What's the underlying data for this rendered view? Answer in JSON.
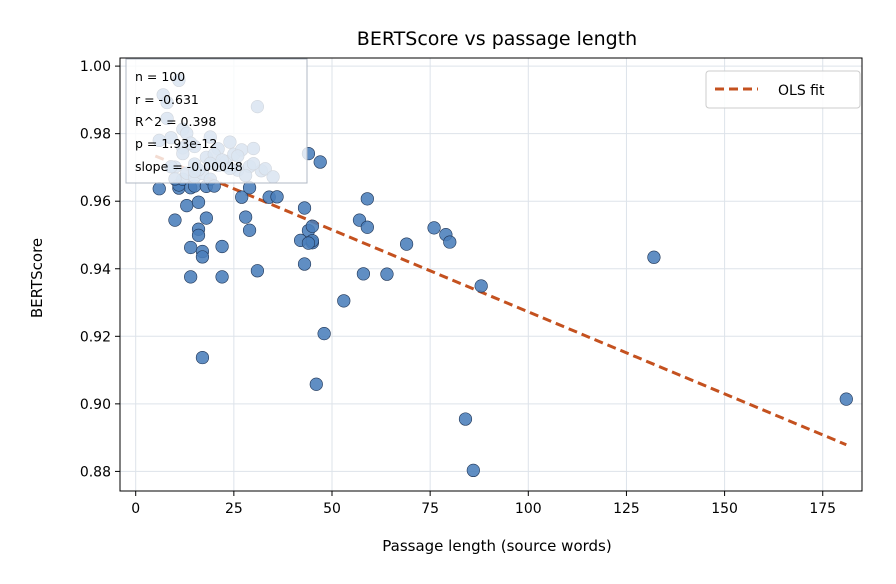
{
  "chart_data": {
    "type": "scatter",
    "title": "BERTScore vs passage length",
    "xlabel": "Passage length (source words)",
    "ylabel": "BERTScore",
    "xlim": [
      -4,
      185
    ],
    "ylim": [
      0.8742,
      1.0024
    ],
    "xticks": [
      0,
      25,
      50,
      75,
      100,
      125,
      150,
      175
    ],
    "yticks": [
      0.88,
      0.9,
      0.92,
      0.94,
      0.96,
      0.98,
      1.0
    ],
    "xtick_labels": [
      "0",
      "25",
      "50",
      "75",
      "100",
      "125",
      "150",
      "175"
    ],
    "ytick_labels": [
      "0.88",
      "0.90",
      "0.92",
      "0.94",
      "0.96",
      "0.98",
      "1.00"
    ],
    "grid": true,
    "legend_position": "top-right",
    "stats_box": [
      "n = 100",
      "r = -0.631",
      "R^2 = 0.398",
      "p = 1.93e-12",
      "slope = -0.00048"
    ],
    "fit": {
      "label": "OLS fit",
      "x": [
        5,
        181
      ],
      "y": [
        0.9734,
        0.8879
      ],
      "color": "#c4511f",
      "style": "dashed"
    },
    "points": {
      "color": "#4a7ebb",
      "edge_color": "#1f3556",
      "x": [
        6,
        7,
        8,
        9,
        10,
        10,
        11,
        11,
        12,
        12,
        13,
        13,
        14,
        14,
        14,
        15,
        15,
        15,
        16,
        16,
        16,
        17,
        17,
        17,
        17,
        18,
        18,
        19,
        20,
        21,
        22,
        22,
        23,
        24,
        26,
        27,
        28,
        29,
        29,
        31,
        31,
        32,
        34,
        36,
        42,
        43,
        43,
        44,
        44,
        45,
        45,
        45,
        46,
        47,
        48,
        53,
        57,
        58,
        59,
        59,
        64,
        69,
        76,
        79,
        80,
        84,
        86,
        88,
        132,
        181,
        6,
        8,
        9,
        12,
        13,
        15,
        18,
        19,
        21,
        23,
        25,
        27,
        29,
        30,
        33,
        35,
        11,
        14,
        16,
        20,
        24,
        26,
        28,
        44,
        30,
        19,
        12,
        10,
        15,
        22
      ],
      "y": [
        0.9637,
        0.9915,
        0.9892,
        0.9788,
        0.9544,
        0.9701,
        0.9639,
        0.9648,
        0.9665,
        0.9813,
        0.9587,
        0.9683,
        0.964,
        0.9463,
        0.9376,
        0.9645,
        0.9672,
        0.971,
        0.9597,
        0.9517,
        0.9499,
        0.9451,
        0.9435,
        0.9137,
        0.9682,
        0.955,
        0.9644,
        0.9665,
        0.9645,
        0.9706,
        0.9466,
        0.9376,
        0.9705,
        0.9775,
        0.9692,
        0.9612,
        0.9553,
        0.9514,
        0.964,
        0.988,
        0.9394,
        0.969,
        0.9612,
        0.9613,
        0.9484,
        0.9414,
        0.958,
        0.9741,
        0.9513,
        0.9526,
        0.9477,
        0.9483,
        0.9058,
        0.9716,
        0.9208,
        0.9305,
        0.9544,
        0.9385,
        0.9607,
        0.9523,
        0.9384,
        0.9473,
        0.9521,
        0.9501,
        0.9479,
        0.8955,
        0.8803,
        0.9349,
        0.9434,
        0.9014,
        0.978,
        0.9845,
        0.9702,
        0.9758,
        0.9801,
        0.9762,
        0.973,
        0.979,
        0.9755,
        0.9718,
        0.9739,
        0.9752,
        0.9703,
        0.9711,
        0.9696,
        0.9672,
        0.9958,
        0.9772,
        0.9693,
        0.9739,
        0.9697,
        0.9734,
        0.9676,
        0.9476,
        0.9756,
        0.9712,
        0.9741,
        0.9666,
        0.9688,
        0.9722
      ]
    }
  }
}
